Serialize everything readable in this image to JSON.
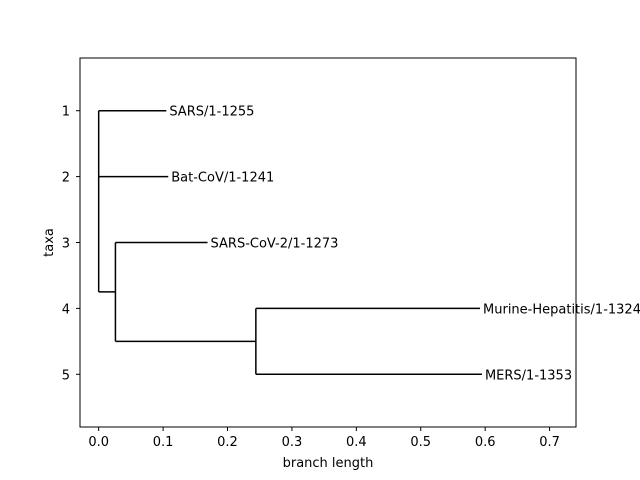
{
  "chart_data": {
    "type": "dendrogram",
    "xlabel": "branch length",
    "ylabel": "taxa",
    "xlim": [
      -0.029,
      0.741
    ],
    "ylim": [
      5.8,
      0.2
    ],
    "x_ticks": [
      0.0,
      0.1,
      0.2,
      0.3,
      0.4,
      0.5,
      0.6,
      0.7
    ],
    "x_tick_labels": [
      "0.0",
      "0.1",
      "0.2",
      "0.3",
      "0.4",
      "0.5",
      "0.6",
      "0.7"
    ],
    "y_ticks": [
      1,
      2,
      3,
      4,
      5
    ],
    "y_tick_labels": [
      "1",
      "2",
      "3",
      "4",
      "5"
    ],
    "taxa": [
      {
        "label": "SARS/1-1255",
        "y": 1,
        "x": 0.105
      },
      {
        "label": "Bat-CoV/1-1241",
        "y": 2,
        "x": 0.108
      },
      {
        "label": "SARS-CoV-2/1-1273",
        "y": 3,
        "x": 0.169
      },
      {
        "label": "Murine-Hepatitis/1-1324",
        "y": 4,
        "x": 0.592
      },
      {
        "label": "MERS/1-1353",
        "y": 5,
        "x": 0.595
      }
    ],
    "branches": [
      {
        "x0": 0.0,
        "x1": 0.105,
        "y": 1
      },
      {
        "x0": 0.0,
        "x1": 0.108,
        "y": 2
      },
      {
        "x0": 0.0,
        "x1": 0.026,
        "y": 3.75
      },
      {
        "x0": 0.026,
        "x1": 0.169,
        "y": 3
      },
      {
        "x0": 0.026,
        "x1": 0.244,
        "y": 4.5
      },
      {
        "x0": 0.244,
        "x1": 0.592,
        "y": 4
      },
      {
        "x0": 0.244,
        "x1": 0.595,
        "y": 5
      }
    ],
    "connectors": [
      {
        "x": 0.0,
        "y0": 1,
        "y1": 3.75
      },
      {
        "x": 0.026,
        "y0": 3,
        "y1": 4.5
      },
      {
        "x": 0.244,
        "y0": 4,
        "y1": 5
      }
    ],
    "colors": {
      "line": "#000000",
      "axes": "#000000",
      "background": "#ffffff"
    }
  }
}
